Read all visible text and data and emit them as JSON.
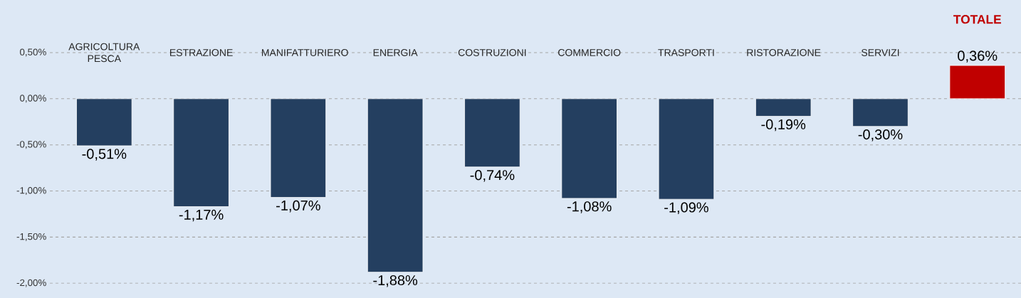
{
  "chart_data": {
    "type": "bar",
    "categories": [
      "AGRICOLTURA PESCA",
      "ESTRAZIONE",
      "MANIFATTURIERO",
      "ENERGIA",
      "COSTRUZIONI",
      "COMMERCIO",
      "TRASPORTI",
      "RISTORAZIONE",
      "SERVIZI",
      "TOTALE"
    ],
    "values": [
      -0.51,
      -1.17,
      -1.07,
      -1.88,
      -0.74,
      -1.08,
      -1.09,
      -0.19,
      -0.3,
      0.36
    ],
    "value_labels": [
      "-0,51%",
      "-1,17%",
      "-1,07%",
      "-1,88%",
      "-0,74%",
      "-1,08%",
      "-1,09%",
      "-0,19%",
      "-0,30%",
      "0,36%"
    ],
    "colors": [
      "#243f60",
      "#243f60",
      "#243f60",
      "#243f60",
      "#243f60",
      "#243f60",
      "#243f60",
      "#243f60",
      "#243f60",
      "#c00000"
    ],
    "ylim": [
      -2.16,
      1.07
    ],
    "yticks": [
      {
        "value": -2,
        "label": "-2,00%"
      },
      {
        "value": -1.5,
        "label": "-1,50%"
      },
      {
        "value": -1,
        "label": "-1,00%"
      },
      {
        "value": -0.5,
        "label": "-0,50%"
      },
      {
        "value": 0,
        "label": "0,00%"
      },
      {
        "value": 0.5,
        "label": "0,50%"
      }
    ],
    "grid": "y"
  }
}
